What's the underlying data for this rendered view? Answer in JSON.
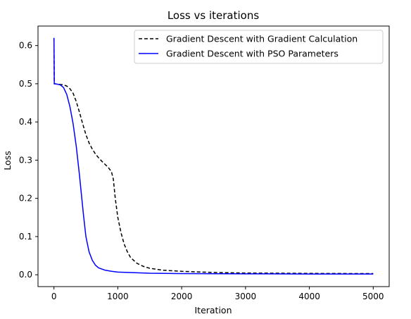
{
  "chart_data": {
    "type": "line",
    "title": "Loss vs iterations",
    "xlabel": "Iteration",
    "ylabel": "Loss",
    "xlim": [
      -250,
      5250
    ],
    "ylim": [
      -0.031,
      0.651
    ],
    "x_ticks": [
      0,
      1000,
      2000,
      3000,
      4000,
      5000
    ],
    "y_ticks": [
      0.0,
      0.1,
      0.2,
      0.3,
      0.4,
      0.5,
      0.6
    ],
    "grid": false,
    "legend_position": "top-right",
    "series": [
      {
        "name": "Gradient Descent with Gradient Calculation",
        "color": "#000000",
        "style": "dashed",
        "points": [
          [
            0,
            0.62
          ],
          [
            5,
            0.5
          ],
          [
            50,
            0.499
          ],
          [
            100,
            0.498
          ],
          [
            150,
            0.497
          ],
          [
            200,
            0.494
          ],
          [
            250,
            0.487
          ],
          [
            300,
            0.475
          ],
          [
            350,
            0.453
          ],
          [
            400,
            0.425
          ],
          [
            450,
            0.395
          ],
          [
            500,
            0.367
          ],
          [
            550,
            0.345
          ],
          [
            600,
            0.329
          ],
          [
            650,
            0.316
          ],
          [
            700,
            0.306
          ],
          [
            750,
            0.297
          ],
          [
            800,
            0.289
          ],
          [
            850,
            0.281
          ],
          [
            900,
            0.27
          ],
          [
            930,
            0.25
          ],
          [
            960,
            0.2
          ],
          [
            1000,
            0.15
          ],
          [
            1050,
            0.11
          ],
          [
            1100,
            0.08
          ],
          [
            1150,
            0.06
          ],
          [
            1200,
            0.045
          ],
          [
            1300,
            0.03
          ],
          [
            1400,
            0.022
          ],
          [
            1500,
            0.017
          ],
          [
            1700,
            0.012
          ],
          [
            2000,
            0.009
          ],
          [
            2500,
            0.006
          ],
          [
            3000,
            0.0045
          ],
          [
            4000,
            0.0035
          ],
          [
            5000,
            0.003
          ]
        ]
      },
      {
        "name": "Gradient Descent with PSO Parameters",
        "color": "#0000ff",
        "style": "solid",
        "points": [
          [
            0,
            0.62
          ],
          [
            5,
            0.5
          ],
          [
            50,
            0.499
          ],
          [
            100,
            0.497
          ],
          [
            150,
            0.49
          ],
          [
            200,
            0.472
          ],
          [
            250,
            0.44
          ],
          [
            300,
            0.395
          ],
          [
            350,
            0.335
          ],
          [
            400,
            0.26
          ],
          [
            430,
            0.21
          ],
          [
            460,
            0.16
          ],
          [
            500,
            0.1
          ],
          [
            550,
            0.06
          ],
          [
            600,
            0.038
          ],
          [
            650,
            0.025
          ],
          [
            700,
            0.018
          ],
          [
            800,
            0.012
          ],
          [
            900,
            0.009
          ],
          [
            1000,
            0.007
          ],
          [
            1500,
            0.004
          ],
          [
            2000,
            0.003
          ],
          [
            3000,
            0.0025
          ],
          [
            4000,
            0.002
          ],
          [
            5000,
            0.002
          ]
        ]
      }
    ]
  }
}
